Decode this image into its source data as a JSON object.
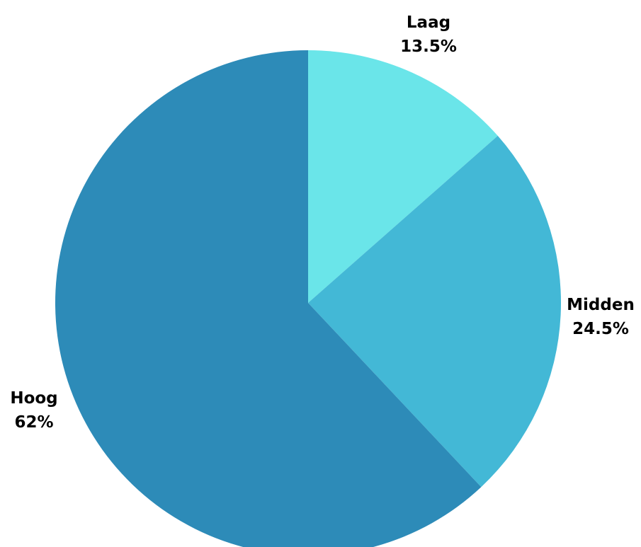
{
  "chart_data": {
    "type": "pie",
    "slices": [
      {
        "label": "Laag",
        "value": 13.5,
        "display": "13.5%",
        "color": "#6ae5e9"
      },
      {
        "label": "Midden",
        "value": 24.5,
        "display": "24.5%",
        "color": "#43b8d6"
      },
      {
        "label": "Hoog",
        "value": 62,
        "display": "62%",
        "color": "#2d8bb8"
      }
    ],
    "start_angle": "12 o'clock",
    "direction": "clockwise",
    "legend": "none",
    "labels": "outside, category and percentage"
  }
}
